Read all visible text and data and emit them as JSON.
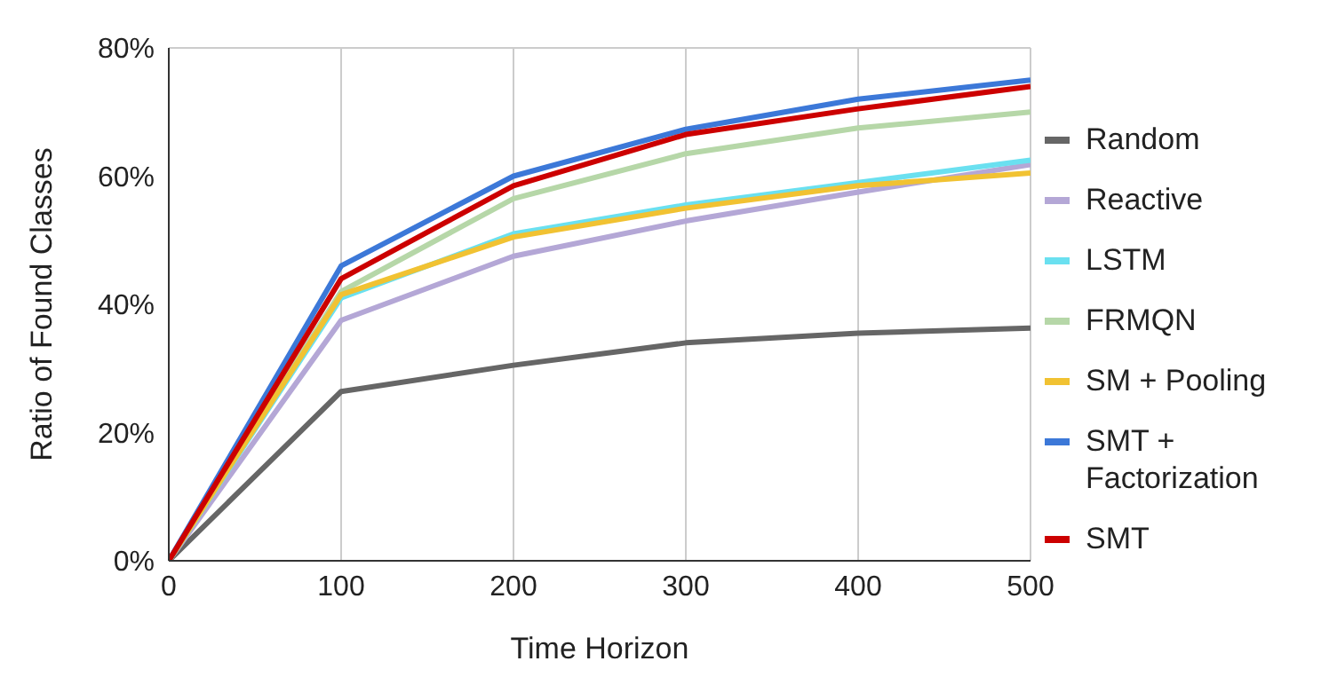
{
  "chart_data": {
    "type": "line",
    "xlabel": "Time Horizon",
    "ylabel": "Ratio of Found Classes",
    "x": [
      0,
      100,
      200,
      300,
      400,
      500
    ],
    "xlim": [
      0,
      500
    ],
    "xticks": [
      0,
      100,
      200,
      300,
      400,
      500
    ],
    "ylim": [
      0,
      80
    ],
    "yticks": [
      {
        "value": 0,
        "label": "0%"
      },
      {
        "value": 20,
        "label": "20%"
      },
      {
        "value": 40,
        "label": "40%"
      },
      {
        "value": 60,
        "label": "60%"
      },
      {
        "value": 80,
        "label": "80%"
      }
    ],
    "grid": true,
    "legend": "right",
    "marker": "none",
    "line_style": "solid",
    "series": [
      {
        "name": "Random",
        "color": "#666666",
        "values": [
          0,
          26.4,
          30.5,
          34,
          35.5,
          36.3
        ]
      },
      {
        "name": "Reactive",
        "color": "#b4a7d6",
        "values": [
          0,
          37.5,
          47.5,
          53,
          57.5,
          61.8
        ]
      },
      {
        "name": "LSTM",
        "color": "#6ae0f0",
        "values": [
          0,
          41,
          51,
          55.5,
          59,
          62.5
        ]
      },
      {
        "name": "FRMQN",
        "color": "#b6d7a8",
        "values": [
          0,
          42,
          56.5,
          63.5,
          67.5,
          70
        ]
      },
      {
        "name": "SM + Pooling",
        "color": "#f1c232",
        "values": [
          0,
          41.5,
          50.5,
          55,
          58.5,
          60.5
        ]
      },
      {
        "name": "SMT + Factorization",
        "color": "#3c78d8",
        "values": [
          0,
          46,
          60,
          67.3,
          72,
          75
        ]
      },
      {
        "name": "SMT",
        "color": "#cc0000",
        "values": [
          0,
          44,
          58.5,
          66.5,
          70.5,
          74
        ]
      }
    ]
  }
}
